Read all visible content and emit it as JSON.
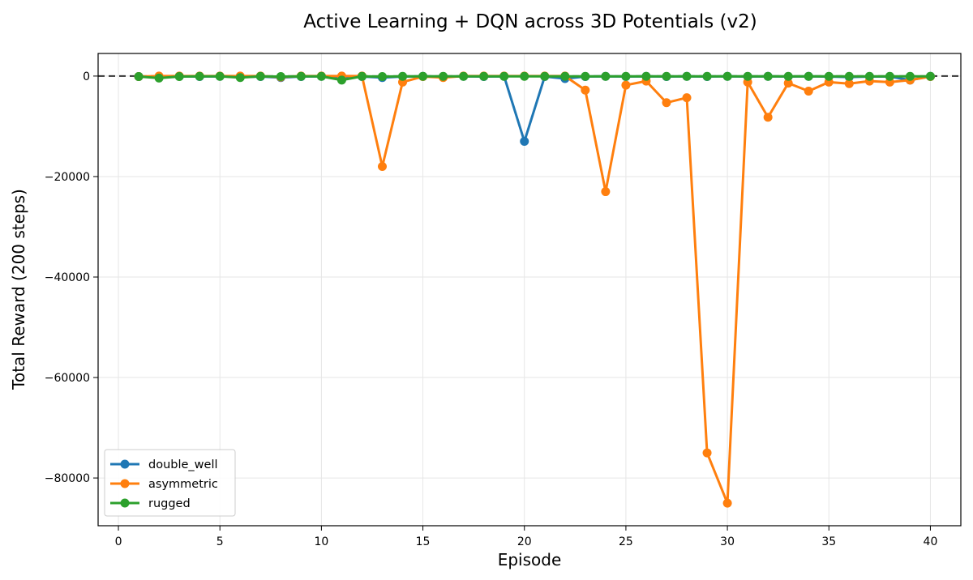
{
  "chart_data": {
    "type": "line",
    "title": "Active Learning + DQN across 3D Potentials (v2)",
    "xlabel": "Episode",
    "ylabel": "Total Reward (200 steps)",
    "xlim": [
      -1,
      41.5
    ],
    "ylim": [
      -89500,
      4500
    ],
    "x_ticks": [
      0,
      5,
      10,
      15,
      20,
      25,
      30,
      35,
      40
    ],
    "y_ticks": [
      0,
      -20000,
      -40000,
      -60000,
      -80000
    ],
    "y_tick_labels": [
      "0",
      "−20000",
      "−40000",
      "−60000",
      "−80000"
    ],
    "grid": true,
    "reference_line": {
      "y": 0,
      "style": "dashed",
      "color": "#333333"
    },
    "legend_position": "lower-left",
    "x": [
      1,
      2,
      3,
      4,
      5,
      6,
      7,
      8,
      9,
      10,
      11,
      12,
      13,
      14,
      15,
      16,
      17,
      18,
      19,
      20,
      21,
      22,
      23,
      24,
      25,
      26,
      27,
      28,
      29,
      30,
      31,
      32,
      33,
      34,
      35,
      36,
      37,
      38,
      39,
      40
    ],
    "series": [
      {
        "name": "double_well",
        "color": "#1f77b4",
        "values": [
          -100,
          -150,
          -50,
          -100,
          -50,
          -200,
          -100,
          -300,
          -100,
          -50,
          -200,
          -100,
          -300,
          -100,
          -50,
          -100,
          -50,
          -100,
          -50,
          -13000,
          -100,
          -500,
          -100,
          -50,
          -100,
          -50,
          -100,
          -50,
          -100,
          -50,
          -100,
          -50,
          -100,
          -50,
          -100,
          -200,
          -100,
          -100,
          -800,
          -50
        ]
      },
      {
        "name": "asymmetric",
        "color": "#ff7f0e",
        "values": [
          -100,
          0,
          0,
          0,
          0,
          0,
          0,
          -200,
          0,
          0,
          0,
          0,
          -18000,
          -1200,
          -100,
          -300,
          0,
          0,
          0,
          0,
          0,
          0,
          -2800,
          -23000,
          -1800,
          -1000,
          -5300,
          -4300,
          -75000,
          -85000,
          -1200,
          -8200,
          -1400,
          -3000,
          -1200,
          -1500,
          -1000,
          -1200,
          -800,
          -100
        ]
      },
      {
        "name": "rugged",
        "color": "#2ca02c",
        "values": [
          -100,
          -400,
          -100,
          -50,
          -50,
          -300,
          -50,
          -100,
          -50,
          -50,
          -800,
          -50,
          -100,
          -50,
          -50,
          -50,
          -50,
          -50,
          -50,
          -50,
          -50,
          -50,
          -50,
          -50,
          -50,
          -50,
          -50,
          -50,
          -50,
          -50,
          -50,
          -50,
          -50,
          -50,
          -50,
          -50,
          -50,
          -50,
          -50,
          -50
        ]
      }
    ]
  }
}
